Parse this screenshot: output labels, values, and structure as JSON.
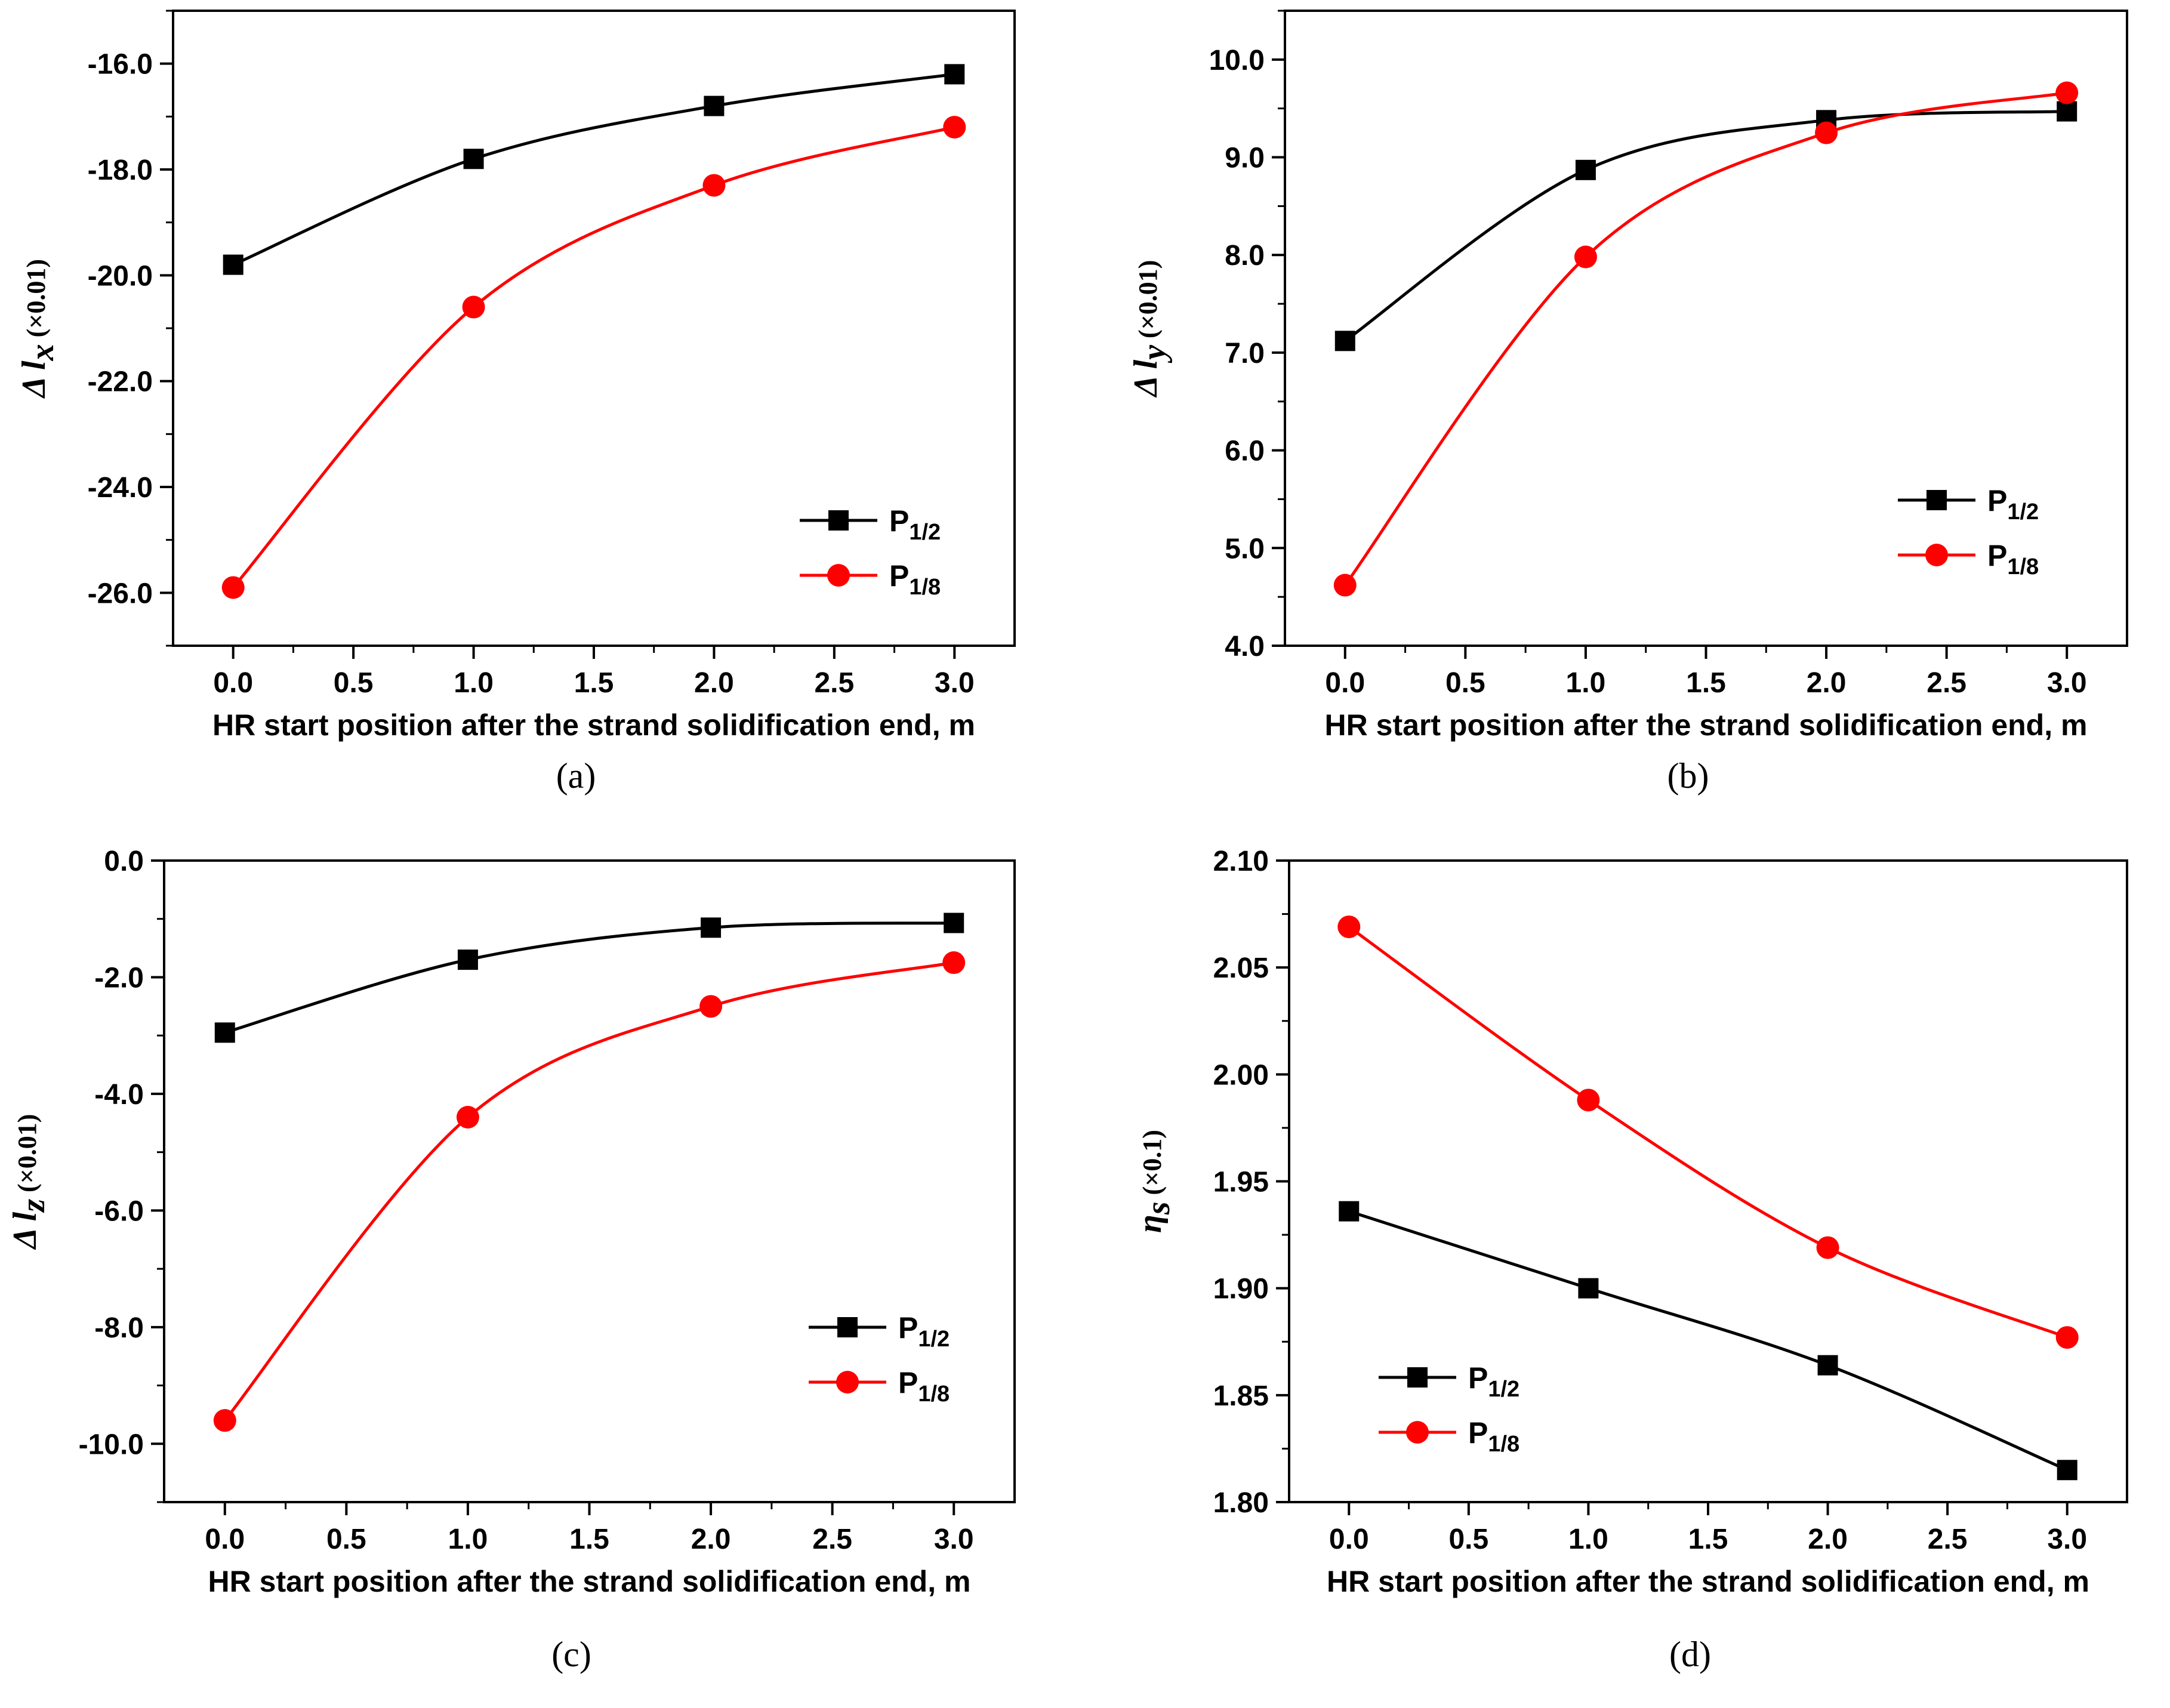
{
  "chart_data": [
    {
      "type": "line",
      "caption": "(a)",
      "xlabel": "HR start position after the strand solidification end, m",
      "ylabel": {
        "symbol": "Δ",
        "var": "l",
        "sub": "x",
        "scale": "(×0.01)"
      },
      "xlim": [
        -0.25,
        3.25
      ],
      "xticks": [
        "0.0",
        "0.5",
        "1.0",
        "1.5",
        "2.0",
        "2.5",
        "3.0"
      ],
      "ylim": [
        -27.0,
        -15.0
      ],
      "yticks": [
        "-16.0",
        "-18.0",
        "-20.0",
        "-22.0",
        "-24.0",
        "-26.0"
      ],
      "x": [
        0,
        1,
        2,
        3
      ],
      "series": [
        {
          "name": "P",
          "sub": "1/2",
          "color": "#000000",
          "marker": "square",
          "values": [
            -19.8,
            -17.8,
            -16.8,
            -16.2
          ]
        },
        {
          "name": "P",
          "sub": "1/8",
          "color": "#ff0000",
          "marker": "circle",
          "values": [
            -25.9,
            -20.6,
            -18.3,
            -17.2
          ]
        }
      ],
      "legend": "lower-right"
    },
    {
      "type": "line",
      "caption": "(b)",
      "xlabel": "HR start position after the strand solidification end, m",
      "ylabel": {
        "symbol": "Δ",
        "var": "l",
        "sub": "y",
        "scale": "(×0.01)"
      },
      "xlim": [
        -0.25,
        3.25
      ],
      "xticks": [
        "0.0",
        "0.5",
        "1.0",
        "1.5",
        "2.0",
        "2.5",
        "3.0"
      ],
      "ylim": [
        4.0,
        10.5
      ],
      "yticks": [
        "4.0",
        "5.0",
        "6.0",
        "7.0",
        "8.0",
        "9.0",
        "10.0"
      ],
      "x": [
        0,
        1,
        2,
        3
      ],
      "series": [
        {
          "name": "P",
          "sub": "1/2",
          "color": "#000000",
          "marker": "square",
          "values": [
            7.12,
            8.87,
            9.38,
            9.47
          ]
        },
        {
          "name": "P",
          "sub": "1/8",
          "color": "#ff0000",
          "marker": "circle",
          "values": [
            4.62,
            7.98,
            9.25,
            9.66
          ]
        }
      ],
      "legend": "lower-right"
    },
    {
      "type": "line",
      "caption": "(c)",
      "xlabel": "HR start position after the strand solidification end, m",
      "ylabel": {
        "symbol": "Δ",
        "var": "l",
        "sub": "z",
        "scale": "(×0.01)"
      },
      "xlim": [
        -0.25,
        3.25
      ],
      "xticks": [
        "0.0",
        "0.5",
        "1.0",
        "1.5",
        "2.0",
        "2.5",
        "3.0"
      ],
      "ylim": [
        -11.0,
        0.0
      ],
      "yticks": [
        "0.0",
        "-2.0",
        "-4.0",
        "-6.0",
        "-8.0",
        "-10.0"
      ],
      "x": [
        0,
        1,
        2,
        3
      ],
      "series": [
        {
          "name": "P",
          "sub": "1/2",
          "color": "#000000",
          "marker": "square",
          "values": [
            -2.95,
            -1.7,
            -1.15,
            -1.07
          ]
        },
        {
          "name": "P",
          "sub": "1/8",
          "color": "#ff0000",
          "marker": "circle",
          "values": [
            -9.6,
            -4.4,
            -2.5,
            -1.75
          ]
        }
      ],
      "legend": "lower-right"
    },
    {
      "type": "line",
      "caption": "(d)",
      "xlabel": "HR start position after the strand solidification end, m",
      "ylabel": {
        "symbol": "",
        "var": "η",
        "sub": "s",
        "scale": "(×0.1)"
      },
      "xlim": [
        -0.25,
        3.25
      ],
      "xticks": [
        "0.0",
        "0.5",
        "1.0",
        "1.5",
        "2.0",
        "2.5",
        "3.0"
      ],
      "ylim": [
        1.8,
        2.1
      ],
      "yticks": [
        "1.80",
        "1.85",
        "1.90",
        "1.95",
        "2.00",
        "2.05",
        "2.10"
      ],
      "x": [
        0,
        1,
        2,
        3
      ],
      "series": [
        {
          "name": "P",
          "sub": "1/2",
          "color": "#000000",
          "marker": "square",
          "values": [
            1.936,
            1.9,
            1.864,
            1.815
          ]
        },
        {
          "name": "P",
          "sub": "1/8",
          "color": "#ff0000",
          "marker": "circle",
          "values": [
            2.069,
            1.988,
            1.919,
            1.877
          ]
        }
      ],
      "legend": "lower-left"
    }
  ]
}
